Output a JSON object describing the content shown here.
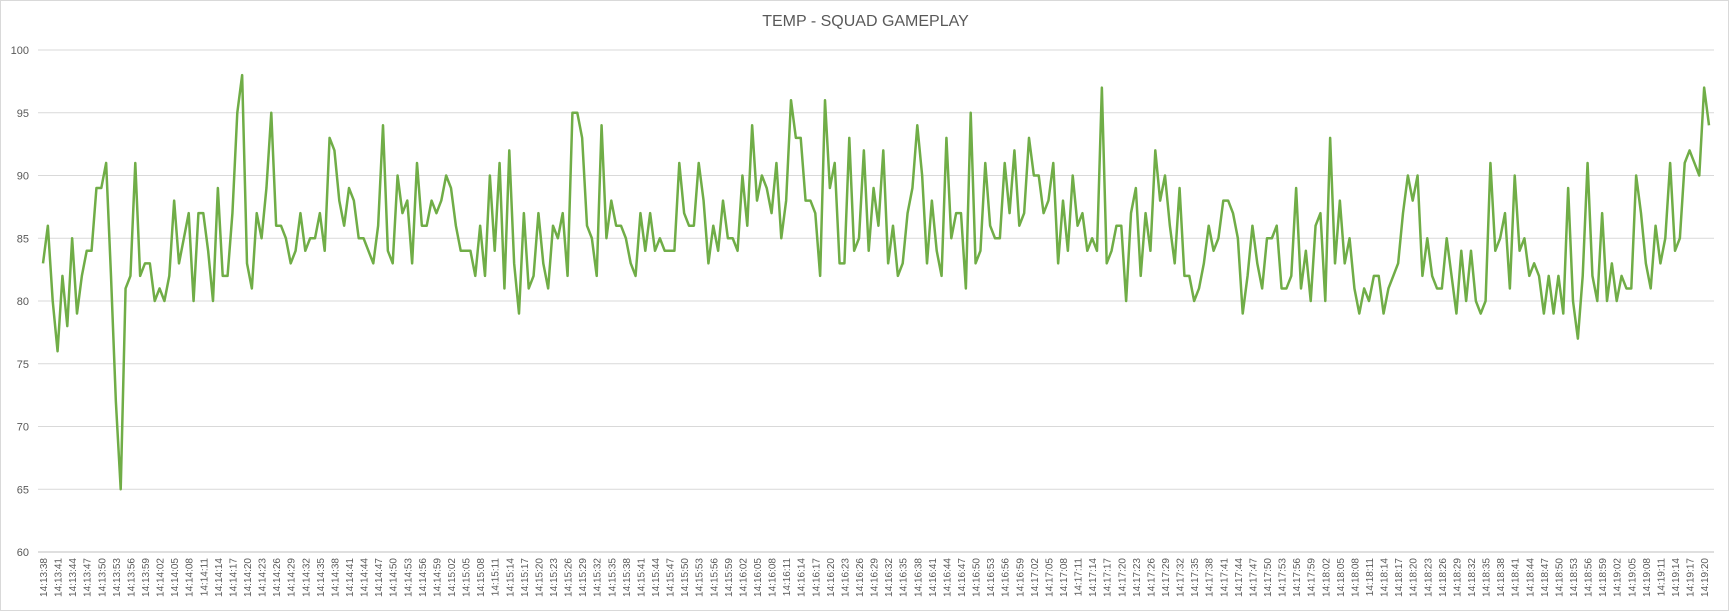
{
  "chart_data": {
    "type": "line",
    "title": "TEMP - SQUAD GAMEPLAY",
    "xlabel": "",
    "ylabel": "",
    "ylim": [
      60,
      100
    ],
    "yticks": [
      60,
      65,
      70,
      75,
      80,
      85,
      90,
      95,
      100
    ],
    "grid": true,
    "legend": "none",
    "x_start": "14:13:38",
    "x_step_seconds": 1,
    "x_label_every": 3,
    "line_color": "#70ad47",
    "series": [
      {
        "values": [
          83,
          86,
          80,
          76,
          82,
          78,
          85,
          79,
          82,
          84,
          84,
          89,
          89,
          91,
          82,
          72,
          65,
          81,
          82,
          91,
          82,
          83,
          83,
          80,
          81,
          80,
          82,
          88,
          83,
          85,
          87,
          80,
          87,
          87,
          84,
          80,
          89,
          82,
          82,
          87,
          95,
          98,
          83,
          81,
          87,
          85,
          89,
          95,
          86,
          86,
          85,
          83,
          84,
          87,
          84,
          85,
          85,
          87,
          84,
          93,
          92,
          88,
          86,
          89,
          88,
          85,
          85,
          84,
          83,
          86,
          94,
          84,
          83,
          90,
          87,
          88,
          83,
          91,
          86,
          86,
          88,
          87,
          88,
          90,
          89,
          86,
          84,
          84,
          84,
          82,
          86,
          82,
          90,
          84,
          91,
          81,
          92,
          83,
          79,
          87,
          81,
          82,
          87,
          83,
          81,
          86,
          85,
          87,
          82,
          95,
          95,
          93,
          86,
          85,
          82,
          94,
          85,
          88,
          86,
          86,
          85,
          83,
          82,
          87,
          84,
          87,
          84,
          85,
          84,
          84,
          84,
          91,
          87,
          86,
          86,
          91,
          88,
          83,
          86,
          84,
          88,
          85,
          85,
          84,
          90,
          86,
          94,
          88,
          90,
          89,
          87,
          91,
          85,
          88,
          96,
          93,
          93,
          88,
          88,
          87,
          82,
          96,
          89,
          91,
          83,
          83,
          93,
          84,
          85,
          92,
          84,
          89,
          86,
          92,
          83,
          86,
          82,
          83,
          87,
          89,
          94,
          90,
          83,
          88,
          84,
          82,
          93,
          85,
          87,
          87,
          81,
          95,
          83,
          84,
          91,
          86,
          85,
          85,
          91,
          87,
          92,
          86,
          87,
          93,
          90,
          90,
          87,
          88,
          91,
          83,
          88,
          84,
          90,
          86,
          87,
          84,
          85,
          84,
          97,
          83,
          84,
          86,
          86,
          80,
          87,
          89,
          82,
          87,
          84,
          92,
          88,
          90,
          86,
          83,
          89,
          82,
          82,
          80,
          81,
          83,
          86,
          84,
          85,
          88,
          88,
          87,
          85,
          79,
          82,
          86,
          83,
          81,
          85,
          85,
          86,
          81,
          81,
          82,
          89,
          81,
          84,
          80,
          86,
          87,
          80,
          93,
          83,
          88,
          83,
          85,
          81,
          79,
          81,
          80,
          82,
          82,
          79,
          81,
          82,
          83,
          87,
          90,
          88,
          90,
          82,
          85,
          82,
          81,
          81,
          85,
          82,
          79,
          84,
          80,
          84,
          80,
          79,
          80,
          91,
          84,
          85,
          87,
          81,
          90,
          84,
          85,
          82,
          83,
          82,
          79,
          82,
          79,
          82,
          79,
          89,
          80,
          77,
          82,
          91,
          82,
          80,
          87,
          80,
          83,
          80,
          82,
          81,
          81,
          90,
          87,
          83,
          81,
          86,
          83,
          85,
          91,
          84,
          85,
          91,
          92,
          91,
          90,
          97,
          94
        ]
      }
    ]
  }
}
